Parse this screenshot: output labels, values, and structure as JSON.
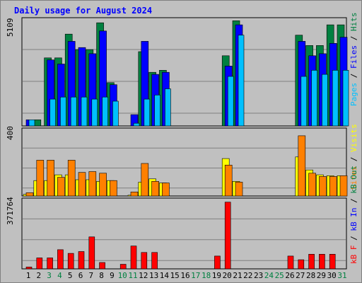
{
  "chart_data": [
    {
      "type": "bar",
      "title": "Daily usage for August 2024",
      "ylim": [
        0,
        5109
      ],
      "ymax_label": "5109",
      "categories": [
        "1",
        "2",
        "3",
        "4",
        "5",
        "6",
        "7",
        "8",
        "9",
        "10",
        "11",
        "12",
        "13",
        "14",
        "15",
        "16",
        "17",
        "18",
        "19",
        "20",
        "21",
        "22",
        "23",
        "24",
        "25",
        "26",
        "27",
        "28",
        "29",
        "30",
        "31"
      ],
      "weekend_days": [
        "3",
        "4",
        "10",
        "11",
        "17",
        "18",
        "24",
        "25",
        "31"
      ],
      "series": [
        {
          "name": "Hits",
          "color": "#008040",
          "values": [
            0,
            300,
            3300,
            3300,
            4450,
            3700,
            3700,
            5000,
            2100,
            0,
            0,
            3600,
            2600,
            2700,
            0,
            0,
            0,
            0,
            0,
            3400,
            5100,
            0,
            0,
            0,
            0,
            0,
            4400,
            3900,
            3900,
            4900,
            4900
          ]
        },
        {
          "name": "Files",
          "color": "#0000ff",
          "values": [
            300,
            0,
            3200,
            3000,
            4100,
            3800,
            3500,
            4600,
            2000,
            0,
            550,
            4100,
            2500,
            2600,
            0,
            0,
            0,
            0,
            0,
            2900,
            4900,
            0,
            0,
            0,
            0,
            0,
            4100,
            3400,
            3500,
            4000,
            4300
          ]
        },
        {
          "name": "Pages",
          "color": "#00c0ff",
          "values": [
            300,
            0,
            1300,
            1400,
            1400,
            1400,
            1300,
            1400,
            1200,
            0,
            130,
            1300,
            1500,
            1800,
            0,
            0,
            0,
            0,
            0,
            2400,
            4400,
            0,
            0,
            0,
            0,
            0,
            2400,
            2700,
            2500,
            2700,
            2700
          ]
        }
      ],
      "ylabels_right": [
        "Pages",
        "Files",
        "Hits"
      ]
    },
    {
      "type": "bar",
      "ylim": [
        0,
        400
      ],
      "ymax_label": "400",
      "categories": [
        "1",
        "2",
        "3",
        "4",
        "5",
        "6",
        "7",
        "8",
        "9",
        "10",
        "11",
        "12",
        "13",
        "14",
        "15",
        "16",
        "17",
        "18",
        "19",
        "20",
        "21",
        "22",
        "23",
        "24",
        "25",
        "26",
        "27",
        "28",
        "29",
        "30",
        "31"
      ],
      "series": [
        {
          "name": "Visits",
          "color": "#ffff00",
          "values": [
            10,
            95,
            95,
            130,
            130,
            100,
            100,
            90,
            95,
            0,
            5,
            85,
            105,
            80,
            0,
            0,
            0,
            0,
            0,
            230,
            90,
            0,
            0,
            0,
            0,
            0,
            240,
            160,
            130,
            125,
            125
          ]
        },
        {
          "name": "Sites",
          "color": "#ff8000",
          "values": [
            20,
            220,
            220,
            115,
            220,
            145,
            150,
            140,
            95,
            0,
            25,
            200,
            90,
            80,
            0,
            0,
            0,
            0,
            0,
            190,
            85,
            0,
            0,
            0,
            0,
            0,
            370,
            140,
            120,
            120,
            125
          ]
        }
      ],
      "ylabels_right": [
        "Sites",
        "Visits"
      ]
    },
    {
      "type": "bar",
      "ylim": [
        0,
        371764
      ],
      "ymax_label": "371764",
      "categories": [
        "1",
        "2",
        "3",
        "4",
        "5",
        "6",
        "7",
        "8",
        "9",
        "10",
        "11",
        "12",
        "13",
        "14",
        "15",
        "16",
        "17",
        "18",
        "19",
        "20",
        "21",
        "22",
        "23",
        "24",
        "25",
        "26",
        "27",
        "28",
        "29",
        "30",
        "31"
      ],
      "series": [
        {
          "name": "kB In",
          "color": "#0000ff",
          "values": [
            0,
            0,
            0,
            0,
            0,
            0,
            0,
            0,
            0,
            0,
            0,
            0,
            0,
            0,
            0,
            0,
            0,
            0,
            0,
            0,
            0,
            0,
            0,
            0,
            0,
            0,
            0,
            0,
            0,
            0,
            0
          ]
        },
        {
          "name": "kB Out",
          "color": "#008040",
          "values": [
            0,
            0,
            0,
            0,
            0,
            0,
            0,
            0,
            0,
            0,
            0,
            0,
            0,
            0,
            0,
            0,
            0,
            0,
            0,
            0,
            0,
            0,
            0,
            0,
            0,
            0,
            0,
            0,
            0,
            0,
            0
          ]
        },
        {
          "name": "kB F",
          "color": "#ff0000",
          "values": [
            10000,
            60000,
            60000,
            105000,
            85000,
            95000,
            175000,
            35000,
            0,
            25000,
            125000,
            90000,
            90000,
            0,
            0,
            0,
            0,
            0,
            70000,
            365000,
            0,
            0,
            0,
            0,
            0,
            70000,
            50000,
            80000,
            80000,
            80000,
            0
          ]
        }
      ],
      "ylabels_right": [
        "kB F",
        "kB In",
        "kB Out"
      ]
    }
  ]
}
